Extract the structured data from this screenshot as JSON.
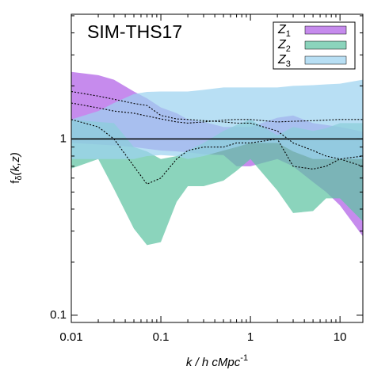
{
  "chart_data": {
    "type": "band",
    "annotation": "SIM-THS17",
    "xlabel": "k / h cMpc",
    "xlabel_sup": "-1",
    "ylabel": "f",
    "ylabel_sub": "δ",
    "ylabel_rest": "(k,z)",
    "log_x": true,
    "log_y": true,
    "xlim": [
      0.01,
      18
    ],
    "ylim": [
      0.091,
      5.1
    ],
    "xticks": [
      0.01,
      0.1,
      1,
      10
    ],
    "yticks": [
      0.1,
      1
    ],
    "xminor_ticks": [
      0.02,
      0.03,
      0.04,
      0.05,
      0.06,
      0.07,
      0.08,
      0.09,
      0.2,
      0.3,
      0.4,
      0.5,
      0.6,
      0.7,
      0.8,
      0.9,
      2,
      3,
      4,
      5,
      6,
      7,
      8,
      9
    ],
    "yminor_ticks": [
      0.2,
      0.3,
      0.4,
      0.5,
      0.6,
      0.7,
      0.8,
      0.9,
      2,
      3,
      4,
      5
    ],
    "hline": 1,
    "legend": "upper right",
    "x": [
      0.01,
      0.02,
      0.03,
      0.05,
      0.07,
      0.1,
      0.15,
      0.2,
      0.3,
      0.5,
      0.7,
      1,
      2,
      3,
      5,
      7,
      10,
      18
    ],
    "series": [
      {
        "name": "Z",
        "subscript": "1",
        "color": "#b05ee6",
        "upper": [
          2.4,
          2.3,
          2.17,
          1.86,
          1.7,
          1.51,
          1.4,
          1.29,
          1.25,
          1.17,
          1.17,
          1.17,
          1.32,
          1.36,
          1.23,
          1.2,
          1.17,
          1.1
        ],
        "lower": [
          0.95,
          0.93,
          0.92,
          0.9,
          0.88,
          0.86,
          0.85,
          0.84,
          0.82,
          0.81,
          0.7,
          0.7,
          0.77,
          0.7,
          0.57,
          0.5,
          0.42,
          0.28
        ],
        "median": [
          1.86,
          1.75,
          1.68,
          1.59,
          1.55,
          1.36,
          1.3,
          1.29,
          1.27,
          1.25,
          1.23,
          1.23,
          1.11,
          0.95,
          0.86,
          0.8,
          0.77,
          0.7
        ]
      },
      {
        "name": "Z",
        "subscript": "2",
        "color": "#5ec4a2",
        "upper": [
          1.29,
          1.25,
          1.23,
          0.9,
          0.85,
          0.77,
          0.8,
          0.86,
          0.95,
          1.11,
          1.2,
          1.29,
          1.05,
          1.17,
          1.11,
          1.15,
          1.23,
          1.23
        ],
        "lower": [
          0.68,
          0.77,
          0.52,
          0.31,
          0.25,
          0.26,
          0.44,
          0.54,
          0.54,
          0.58,
          0.66,
          0.77,
          0.51,
          0.38,
          0.39,
          0.46,
          0.46,
          0.34
        ],
        "median": [
          1.29,
          1.17,
          1.0,
          0.7,
          0.555,
          0.6,
          0.77,
          0.86,
          0.9,
          0.9,
          0.95,
          0.95,
          1.0,
          0.7,
          0.675,
          0.7,
          0.77,
          0.8
        ]
      },
      {
        "name": "Z",
        "subscript": "3",
        "color": "#9dd3f0",
        "upper": [
          1.29,
          1.44,
          1.6,
          1.8,
          1.85,
          1.86,
          1.86,
          1.86,
          1.9,
          1.96,
          1.96,
          1.96,
          1.96,
          2.0,
          2.02,
          2.04,
          2.06,
          2.17
        ],
        "lower": [
          0.77,
          0.77,
          0.77,
          0.77,
          0.8,
          0.81,
          0.8,
          0.77,
          0.8,
          0.86,
          0.9,
          0.95,
          0.95,
          0.85,
          0.77,
          0.77,
          0.77,
          0.77
        ],
        "median": [
          1.6,
          1.5,
          1.44,
          1.4,
          1.35,
          1.3,
          1.25,
          1.23,
          1.25,
          1.28,
          1.29,
          1.29,
          1.25,
          1.26,
          1.27,
          1.28,
          1.29,
          1.29
        ]
      }
    ]
  }
}
